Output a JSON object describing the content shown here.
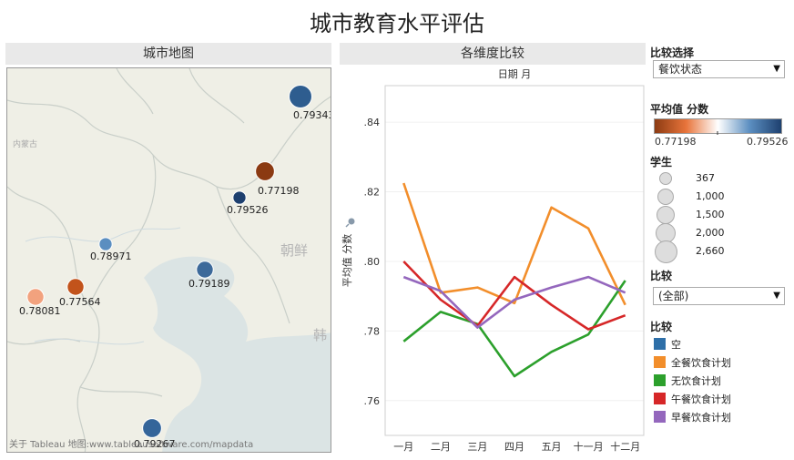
{
  "page": {
    "title": "城市教育水平评估"
  },
  "map": {
    "header": "城市地图",
    "attribution": "关于 Tableau 地图:www.tableausoftware.com/mapdata",
    "place_labels": [
      "内蒙古",
      "朝鲜",
      "韩"
    ],
    "points": [
      {
        "value": "0.79343",
        "color": "#2e5d8f",
        "students": 2660
      },
      {
        "value": "0.77198",
        "color": "#8b3a12",
        "students": 1500
      },
      {
        "value": "0.79526",
        "color": "#1d3f6e",
        "students": 367
      },
      {
        "value": "0.78971",
        "color": "#5b8ec0",
        "students": 367
      },
      {
        "value": "0.79189",
        "color": "#3d6a9a",
        "students": 1000
      },
      {
        "value": "0.77564",
        "color": "#c2531b",
        "students": 1000
      },
      {
        "value": "0.78081",
        "color": "#f2a27e",
        "students": 1000
      },
      {
        "value": "0.79267",
        "color": "#34659a",
        "students": 1500
      }
    ]
  },
  "chart_panel": {
    "header": "各维度比较"
  },
  "chart_data": {
    "type": "line",
    "title": "日期 月",
    "ylabel": "平均值 分数",
    "ylim": [
      0.75,
      0.8505
    ],
    "yticks": [
      0.76,
      0.78,
      0.8,
      0.82,
      0.84
    ],
    "ytick_labels": [
      ".76",
      ".78",
      ".80",
      ".82",
      ".84"
    ],
    "categories": [
      "一月",
      "二月",
      "三月",
      "四月",
      "五月",
      "十一月",
      "十二月"
    ],
    "series": [
      {
        "name": "全餐饮食计划",
        "color": "#f28e2b",
        "values": [
          0.8225,
          0.791,
          0.7925,
          0.788,
          0.8155,
          0.8095,
          0.7875
        ]
      },
      {
        "name": "无饮食计划",
        "color": "#2ca02c",
        "values": [
          0.777,
          0.7855,
          0.782,
          0.767,
          0.774,
          0.779,
          0.7945
        ]
      },
      {
        "name": "午餐饮食计划",
        "color": "#d62728",
        "values": [
          0.8,
          0.789,
          0.7815,
          0.7955,
          0.7875,
          0.7805,
          0.7845
        ]
      },
      {
        "name": "早餐饮食计划",
        "color": "#9467bd",
        "values": [
          0.7955,
          0.7915,
          0.781,
          0.789,
          0.7925,
          0.7955,
          0.791
        ]
      }
    ]
  },
  "controls": {
    "compare_select": {
      "title": "比较选择",
      "value": "餐饮状态"
    },
    "color_legend": {
      "title": "平均值 分数",
      "min_label": "0.77198",
      "max_label": "0.79526",
      "colors": [
        "#8b3a12",
        "#e8743b",
        "#ffffff",
        "#5b8ec0",
        "#1d3f6e"
      ]
    },
    "size_legend": {
      "title": "学生",
      "items": [
        {
          "label": "367",
          "students": 367
        },
        {
          "label": "1,000",
          "students": 1000
        },
        {
          "label": "1,500",
          "students": 1500
        },
        {
          "label": "2,000",
          "students": 2000
        },
        {
          "label": "2,660",
          "students": 2660
        }
      ]
    },
    "compare_filter": {
      "title": "比较",
      "value": "(全部)"
    },
    "compare_legend": {
      "title": "比较",
      "items": [
        {
          "label": "空",
          "color": "#2e6fa8"
        },
        {
          "label": "全餐饮食计划",
          "color": "#f28e2b"
        },
        {
          "label": "无饮食计划",
          "color": "#2ca02c"
        },
        {
          "label": "午餐饮食计划",
          "color": "#d62728"
        },
        {
          "label": "早餐饮食计划",
          "color": "#9467bd"
        }
      ]
    }
  }
}
